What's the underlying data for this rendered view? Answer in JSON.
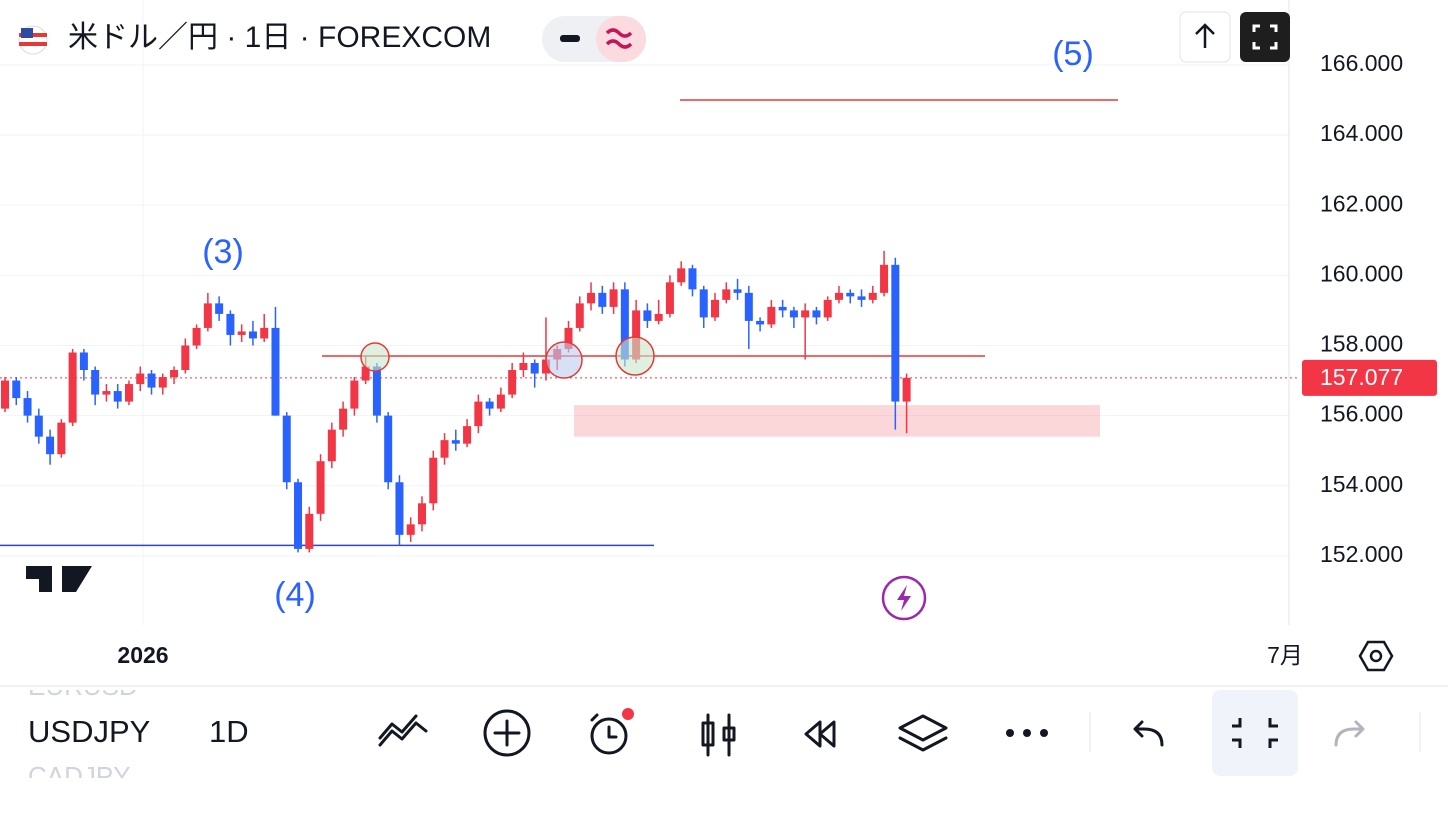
{
  "header": {
    "title": "米ドル／円 · 1日 · FOREXCOM"
  },
  "chart": {
    "type": "candlestick",
    "ylim": [
      150.03,
      167.85
    ],
    "yticks": [
      {
        "value": 152,
        "label": "152.000"
      },
      {
        "value": 154,
        "label": "154.000"
      },
      {
        "value": 156,
        "label": "156.000"
      },
      {
        "value": 158,
        "label": "158.000"
      },
      {
        "value": 160,
        "label": "160.000"
      },
      {
        "value": 162,
        "label": "162.000"
      },
      {
        "value": 164,
        "label": "164.000"
      },
      {
        "value": 166,
        "label": "166.000"
      }
    ],
    "last_price": {
      "value": 157.077,
      "label": "157.077"
    },
    "x_labels": [
      "2026",
      "7月"
    ],
    "up_color": "#f23645",
    "down_color": "#2962ff",
    "wave_labels": [
      "(3)",
      "(4)",
      "(5)"
    ],
    "levels": [
      {
        "value": 165.0,
        "color": "#e53935"
      },
      {
        "value": 157.7,
        "color": "#e53935"
      },
      {
        "value": 152.3,
        "color": "#2944d6"
      }
    ],
    "zone": [
      155.4,
      156.3
    ],
    "candles": [
      [
        156.2,
        157.1,
        156.1,
        157.0
      ],
      [
        157.0,
        157.1,
        156.3,
        156.5
      ],
      [
        156.5,
        156.7,
        155.8,
        156.0
      ],
      [
        156.0,
        156.2,
        155.2,
        155.4
      ],
      [
        155.4,
        155.6,
        154.6,
        154.9
      ],
      [
        154.9,
        155.9,
        154.8,
        155.8
      ],
      [
        155.8,
        157.9,
        155.7,
        157.8
      ],
      [
        157.8,
        157.9,
        157.0,
        157.3
      ],
      [
        157.3,
        157.4,
        156.3,
        156.6
      ],
      [
        156.6,
        156.9,
        156.4,
        156.7
      ],
      [
        156.7,
        156.9,
        156.2,
        156.4
      ],
      [
        156.4,
        157.0,
        156.3,
        156.9
      ],
      [
        156.9,
        157.4,
        156.7,
        157.2
      ],
      [
        157.2,
        157.3,
        156.6,
        156.8
      ],
      [
        156.8,
        157.2,
        156.6,
        157.1
      ],
      [
        157.1,
        157.4,
        156.9,
        157.3
      ],
      [
        157.3,
        158.2,
        157.2,
        158.0
      ],
      [
        158.0,
        158.6,
        157.9,
        158.5
      ],
      [
        158.5,
        159.5,
        158.4,
        159.2
      ],
      [
        159.2,
        159.4,
        158.7,
        158.9
      ],
      [
        158.9,
        159.0,
        158.0,
        158.3
      ],
      [
        158.3,
        158.6,
        158.1,
        158.4
      ],
      [
        158.4,
        158.7,
        158.0,
        158.2
      ],
      [
        158.2,
        158.9,
        158.1,
        158.5
      ],
      [
        158.5,
        159.1,
        156.0,
        156.0
      ],
      [
        156.0,
        156.1,
        153.9,
        154.1
      ],
      [
        154.1,
        154.2,
        152.1,
        152.2
      ],
      [
        152.2,
        153.4,
        152.1,
        153.2
      ],
      [
        153.2,
        154.9,
        153.0,
        154.7
      ],
      [
        154.7,
        155.8,
        154.5,
        155.6
      ],
      [
        155.6,
        156.4,
        155.4,
        156.2
      ],
      [
        156.2,
        157.1,
        156.0,
        157.0
      ],
      [
        157.0,
        157.7,
        156.9,
        157.4
      ],
      [
        157.4,
        157.5,
        155.8,
        156.0
      ],
      [
        156.0,
        156.1,
        153.9,
        154.1
      ],
      [
        154.1,
        154.3,
        152.3,
        152.6
      ],
      [
        152.6,
        153.1,
        152.4,
        152.9
      ],
      [
        152.9,
        153.7,
        152.7,
        153.5
      ],
      [
        153.5,
        155.0,
        153.3,
        154.8
      ],
      [
        154.8,
        155.5,
        154.6,
        155.3
      ],
      [
        155.3,
        155.6,
        155.0,
        155.2
      ],
      [
        155.2,
        155.9,
        155.1,
        155.7
      ],
      [
        155.7,
        156.6,
        155.5,
        156.4
      ],
      [
        156.4,
        156.5,
        156.0,
        156.2
      ],
      [
        156.2,
        156.8,
        156.1,
        156.6
      ],
      [
        156.6,
        157.5,
        156.5,
        157.3
      ],
      [
        157.3,
        157.8,
        157.1,
        157.5
      ],
      [
        157.5,
        157.6,
        156.8,
        157.2
      ],
      [
        157.2,
        158.8,
        157.0,
        157.6
      ],
      [
        157.6,
        158.0,
        157.3,
        157.9
      ],
      [
        157.9,
        158.7,
        157.8,
        158.5
      ],
      [
        158.5,
        159.4,
        158.4,
        159.2
      ],
      [
        159.2,
        159.8,
        159.0,
        159.5
      ],
      [
        159.5,
        159.7,
        158.9,
        159.1
      ],
      [
        159.1,
        159.8,
        158.9,
        159.6
      ],
      [
        159.6,
        159.8,
        157.4,
        157.6
      ],
      [
        157.6,
        159.3,
        157.5,
        159.0
      ],
      [
        159.0,
        159.2,
        158.5,
        158.7
      ],
      [
        158.7,
        159.3,
        158.6,
        158.9
      ],
      [
        158.9,
        160.0,
        158.8,
        159.8
      ],
      [
        159.8,
        160.4,
        159.7,
        160.2
      ],
      [
        160.2,
        160.3,
        159.4,
        159.6
      ],
      [
        159.6,
        159.7,
        158.5,
        158.8
      ],
      [
        158.8,
        159.5,
        158.7,
        159.3
      ],
      [
        159.3,
        159.8,
        159.2,
        159.6
      ],
      [
        159.6,
        159.9,
        159.3,
        159.5
      ],
      [
        159.5,
        159.7,
        157.9,
        158.7
      ],
      [
        158.7,
        158.8,
        158.4,
        158.6
      ],
      [
        158.6,
        159.3,
        158.5,
        159.1
      ],
      [
        159.1,
        159.3,
        158.8,
        159.0
      ],
      [
        159.0,
        159.1,
        158.5,
        158.8
      ],
      [
        158.8,
        159.2,
        157.6,
        159.0
      ],
      [
        159.0,
        159.1,
        158.6,
        158.8
      ],
      [
        158.8,
        159.4,
        158.7,
        159.3
      ],
      [
        159.3,
        159.7,
        159.2,
        159.5
      ],
      [
        159.5,
        159.6,
        159.2,
        159.4
      ],
      [
        159.4,
        159.6,
        159.1,
        159.3
      ],
      [
        159.3,
        159.7,
        159.2,
        159.5
      ],
      [
        159.5,
        160.7,
        159.4,
        160.3
      ],
      [
        160.3,
        160.5,
        155.6,
        156.4
      ],
      [
        156.4,
        157.2,
        155.5,
        157.077
      ]
    ]
  },
  "toolbar": {
    "symbols": [
      "EURUSD",
      "USDJPY",
      "CADJPY"
    ],
    "interval": "1D"
  }
}
